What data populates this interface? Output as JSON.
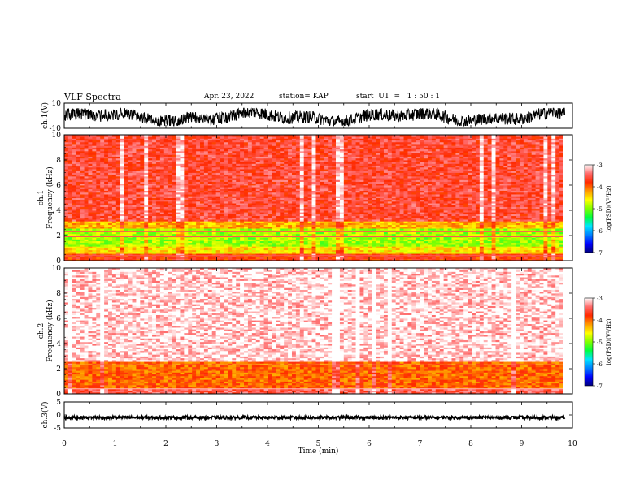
{
  "header": {
    "title": "VLF Spectra",
    "date": "Apr. 23, 2022",
    "station": "station= KAP",
    "start": "start  UT  =   1 : 50 : 1"
  },
  "colors": {
    "trace": "#000000",
    "colormap": [
      "#00007f",
      "#0000ff",
      "#0080ff",
      "#00e5ff",
      "#00ff40",
      "#80ff00",
      "#ffff00",
      "#ff9900",
      "#ff2a00",
      "#ff6a6a",
      "#ffffff"
    ]
  },
  "chart_data": [
    {
      "type": "line",
      "name": "ch1_waveform",
      "ylabel": "ch.1(V)",
      "ylim": [
        -10,
        10
      ],
      "yticks": [
        "10",
        "-10"
      ],
      "x_range_min": [
        0,
        9.85
      ],
      "typical_range": [
        -8,
        6
      ],
      "grid": false
    },
    {
      "type": "heatmap",
      "name": "ch1_spectrogram",
      "ylabel": "ch.1\nFrequency  (kHz)",
      "ylim": [
        0,
        10
      ],
      "yticks": [
        "0",
        "2",
        "4",
        "6",
        "8",
        "10"
      ],
      "colorbar": {
        "label": "log(PSD)(V²/Hz)",
        "range": [
          -7,
          -3
        ],
        "ticks": [
          "-3",
          "-4",
          "-5",
          "-6",
          "-7"
        ]
      },
      "bands_khz": [
        {
          "from": 0.0,
          "to": 0.6,
          "level": -3.8
        },
        {
          "from": 0.6,
          "to": 1.2,
          "level": -4.5
        },
        {
          "from": 1.2,
          "to": 2.6,
          "level": -4.9
        },
        {
          "from": 2.6,
          "to": 3.2,
          "level": -4.3
        },
        {
          "from": 3.2,
          "to": 10.0,
          "level": -3.6
        }
      ]
    },
    {
      "type": "heatmap",
      "name": "ch2_spectrogram",
      "ylabel": "ch.2\nFrequency  (kHz)",
      "ylim": [
        0,
        10
      ],
      "yticks": [
        "0",
        "2",
        "4",
        "6",
        "8",
        "10"
      ],
      "colorbar": {
        "label": "log(PSD)(V²/Hz)",
        "range": [
          -7,
          -3
        ],
        "ticks": [
          "-3",
          "-4",
          "-5",
          "-6",
          "-7"
        ]
      },
      "bands_khz": [
        {
          "from": 0.0,
          "to": 0.4,
          "level": -3.5
        },
        {
          "from": 0.4,
          "to": 2.6,
          "level": -4.0
        },
        {
          "from": 2.6,
          "to": 10.0,
          "level": -3.1
        }
      ]
    },
    {
      "type": "line",
      "name": "ch3_waveform",
      "ylabel": "ch.3(V)",
      "ylim": [
        -5,
        5
      ],
      "yticks": [
        "5",
        "0",
        "-5"
      ],
      "typical_value": -1,
      "x_range_min": [
        0,
        9.85
      ]
    }
  ],
  "xaxis": {
    "label": "Time  (min)",
    "ticks": [
      "0",
      "1",
      "2",
      "3",
      "4",
      "5",
      "6",
      "7",
      "8",
      "9",
      "10"
    ],
    "range": [
      0,
      10
    ]
  }
}
